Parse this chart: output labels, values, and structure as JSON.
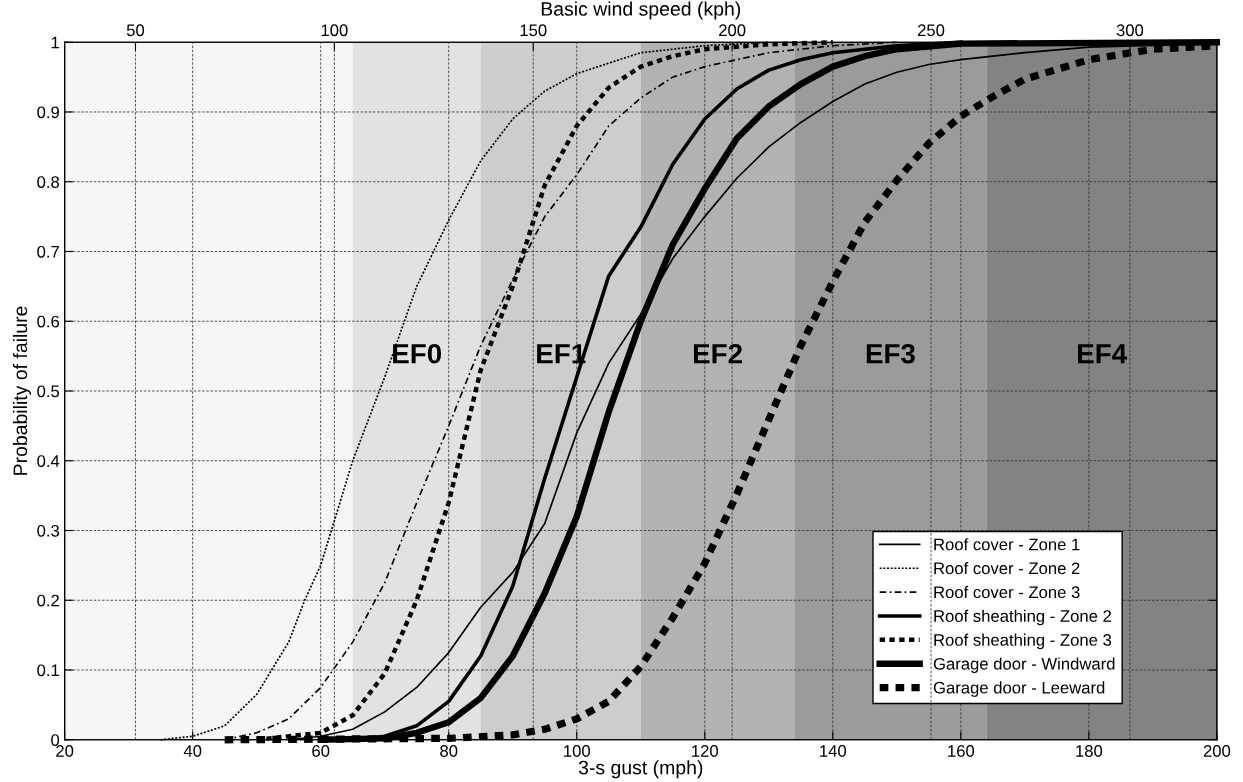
{
  "chart_data": {
    "type": "line",
    "xlabel": "3-s gust (mph)",
    "ylabel": "Probability of failure",
    "x2label": "Basic wind speed (kph)",
    "xlim": [
      20,
      200
    ],
    "xticks": [
      20,
      40,
      60,
      80,
      100,
      120,
      140,
      160,
      180,
      200
    ],
    "ylim": [
      0,
      1
    ],
    "yticks": [
      0,
      0.1,
      0.2,
      0.3,
      0.4,
      0.5,
      0.6,
      0.7,
      0.8,
      0.9,
      1
    ],
    "x2lim": [
      32.19,
      321.87
    ],
    "x2ticks": [
      50,
      100,
      150,
      200,
      250,
      300
    ],
    "grid": true,
    "legend": "lower right",
    "marker": "none",
    "bands": [
      {
        "axis": "x",
        "from": 65,
        "to": 85,
        "label": "EF0",
        "color": "#e2e2e2"
      },
      {
        "axis": "x",
        "from": 85,
        "to": 110,
        "label": "EF1",
        "color": "#cdcdcd"
      },
      {
        "axis": "x",
        "from": 110,
        "to": 134,
        "label": "EF2",
        "color": "#b2b2b2"
      },
      {
        "axis": "x",
        "from": 134,
        "to": 164,
        "label": "EF3",
        "color": "#9b9b9b"
      },
      {
        "axis": "x",
        "from": 164,
        "to": 200,
        "label": "EF4",
        "color": "#838383"
      }
    ],
    "series": [
      {
        "name": "Roof cover - Zone 1",
        "color": "#000000",
        "line_style": "solid",
        "x": [
          55,
          60,
          65,
          70,
          75,
          80,
          85,
          90,
          95,
          100,
          105,
          110,
          115,
          120,
          125,
          130,
          135,
          140,
          145,
          150,
          155,
          160,
          170,
          180,
          200
        ],
        "values": [
          0,
          0.005,
          0.015,
          0.04,
          0.075,
          0.125,
          0.19,
          0.24,
          0.31,
          0.44,
          0.54,
          0.61,
          0.69,
          0.75,
          0.805,
          0.85,
          0.885,
          0.915,
          0.94,
          0.957,
          0.968,
          0.975,
          0.985,
          0.993,
          0.998
        ]
      },
      {
        "name": "Roof cover - Zone 2",
        "color": "#000000",
        "line_style": "dotted",
        "x": [
          35,
          40,
          45,
          50,
          55,
          57.5,
          60,
          65,
          70,
          75,
          80,
          85,
          90,
          95,
          100,
          105,
          110,
          115,
          120,
          130
        ],
        "values": [
          0,
          0.005,
          0.02,
          0.065,
          0.14,
          0.2,
          0.25,
          0.4,
          0.52,
          0.65,
          0.745,
          0.83,
          0.89,
          0.93,
          0.955,
          0.97,
          0.985,
          0.99,
          0.995,
          1
        ]
      },
      {
        "name": "Roof cover - Zone 3",
        "color": "#000000",
        "line_style": "dashed",
        "x": [
          45,
          50,
          55,
          60,
          65,
          70,
          75,
          80,
          85,
          90,
          95,
          100,
          105,
          110,
          115,
          120,
          125,
          130,
          140,
          150
        ],
        "values": [
          0,
          0.01,
          0.03,
          0.075,
          0.14,
          0.225,
          0.34,
          0.45,
          0.565,
          0.66,
          0.75,
          0.81,
          0.88,
          0.92,
          0.95,
          0.965,
          0.975,
          0.985,
          0.995,
          1
        ]
      },
      {
        "name": "Roof sheathing - Zone 2",
        "color": "#000000",
        "line_style": "solid",
        "x": [
          65,
          70,
          75,
          80,
          85,
          90,
          95,
          100,
          105,
          110,
          115,
          120,
          125,
          130,
          135,
          140,
          150,
          160
        ],
        "values": [
          0,
          0.005,
          0.02,
          0.055,
          0.12,
          0.22,
          0.375,
          0.52,
          0.665,
          0.735,
          0.825,
          0.89,
          0.933,
          0.96,
          0.975,
          0.985,
          0.995,
          1
        ]
      },
      {
        "name": "Roof sheathing - Zone 3",
        "color": "#000000",
        "line_style": "dotted",
        "x": [
          50,
          60,
          65,
          70,
          75,
          80,
          85,
          90,
          95,
          100,
          105,
          110,
          115,
          120,
          130,
          140
        ],
        "values": [
          0,
          0.01,
          0.035,
          0.095,
          0.2,
          0.34,
          0.53,
          0.65,
          0.795,
          0.88,
          0.935,
          0.965,
          0.98,
          0.99,
          0.997,
          1
        ]
      },
      {
        "name": "Garage door - Windward",
        "color": "#000000",
        "line_style": "solid",
        "x": [
          60,
          70,
          75,
          80,
          85,
          90,
          95,
          100,
          105,
          110,
          115,
          120,
          125,
          130,
          135,
          140,
          145,
          150,
          160,
          200
        ],
        "values": [
          0,
          0.002,
          0.01,
          0.025,
          0.06,
          0.12,
          0.21,
          0.32,
          0.47,
          0.6,
          0.71,
          0.79,
          0.862,
          0.908,
          0.94,
          0.965,
          0.98,
          0.99,
          0.998,
          1
        ]
      },
      {
        "name": "Garage door - Leeward",
        "color": "#000000",
        "line_style": "dotted",
        "x": [
          45,
          80,
          90,
          95,
          100,
          105,
          110,
          115,
          120,
          125,
          130,
          135,
          140,
          145,
          150,
          155,
          160,
          165,
          170,
          180,
          190,
          200
        ],
        "values": [
          0,
          0.002,
          0.007,
          0.015,
          0.03,
          0.055,
          0.105,
          0.175,
          0.253,
          0.352,
          0.459,
          0.565,
          0.657,
          0.742,
          0.802,
          0.855,
          0.894,
          0.922,
          0.947,
          0.975,
          0.99,
          0.995
        ]
      }
    ]
  }
}
